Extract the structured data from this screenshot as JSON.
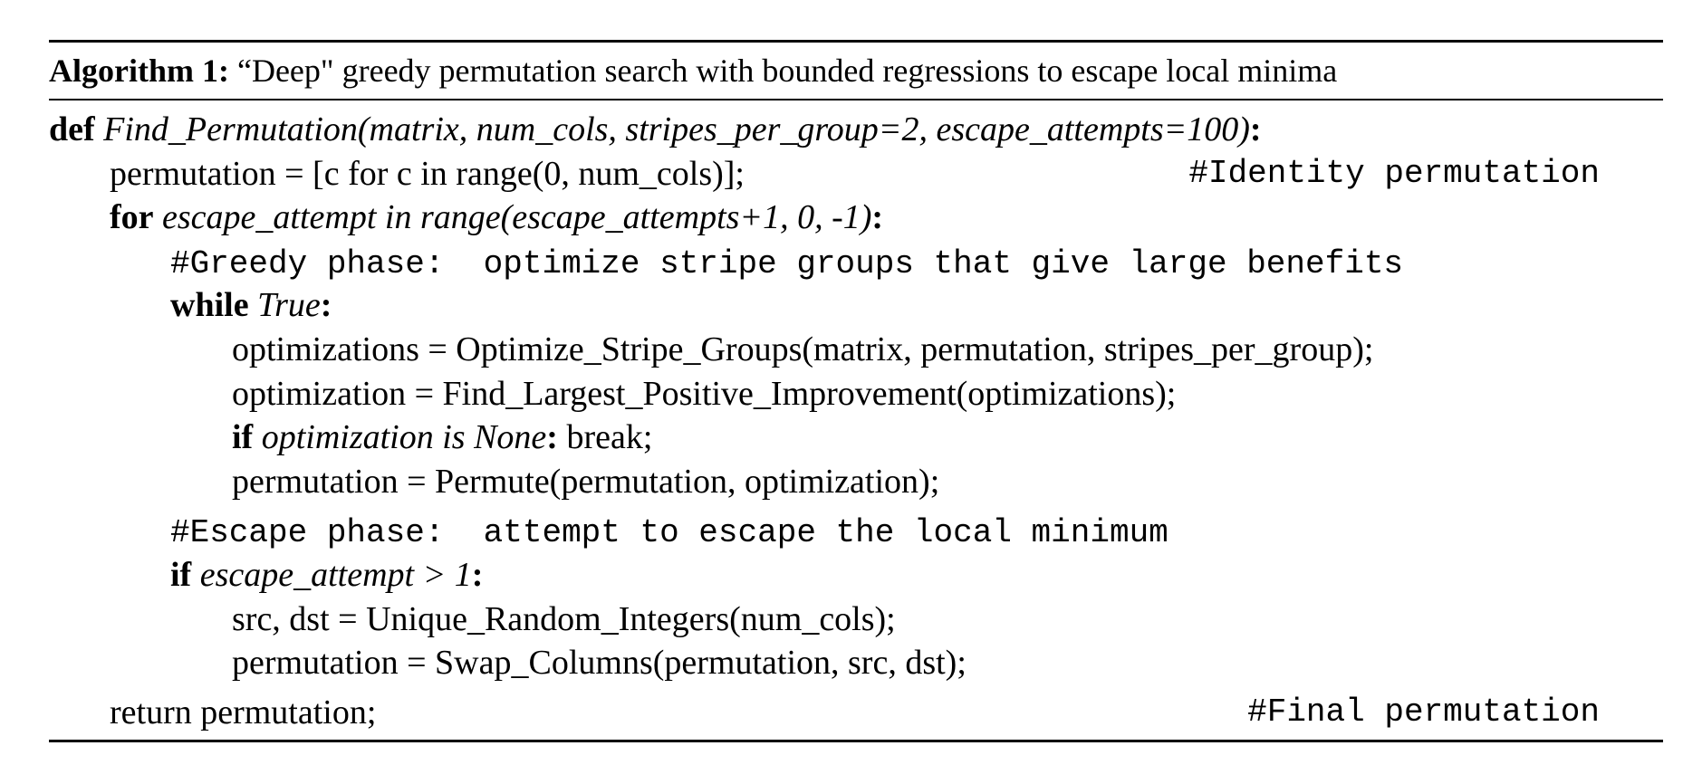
{
  "caption": {
    "label": "Algorithm 1:",
    "text": " “Deep\" greedy permutation search with bounded regressions to escape local minima"
  },
  "lines": {
    "def_kw": "def",
    "def_sig": "Find_Permutation(matrix, num_cols, stripes_per_group=2, escape_attempts=100)",
    "colon": ":",
    "perm_init": "permutation = [c for c in range(0, num_cols)];",
    "perm_init_comment": "#Identity permutation",
    "for_kw": "for",
    "for_cond": "escape_attempt in range(escape_attempts+1, 0, -1)",
    "greedy_comment": "#Greedy phase:  optimize stripe groups that give large benefits",
    "while_kw": "while",
    "while_cond": "True",
    "optimizations": "optimizations = Optimize_Stripe_Groups(matrix, permutation, stripes_per_group);",
    "optimization": "optimization = Find_Largest_Positive_Improvement(optimizations);",
    "if_kw": "if",
    "if_none_cond": "optimization is None",
    "break_stmt": " break;",
    "permute": "permutation = Permute(permutation, optimization);",
    "escape_comment": "#Escape phase:  attempt to escape the local minimum",
    "if_escape_cond": "escape_attempt > 1",
    "src_dst": "src, dst = Unique_Random_Integers(num_cols);",
    "swap": "permutation = Swap_Columns(permutation, src, dst);",
    "return_stmt": "return permutation;",
    "return_comment": "#Final permutation"
  }
}
